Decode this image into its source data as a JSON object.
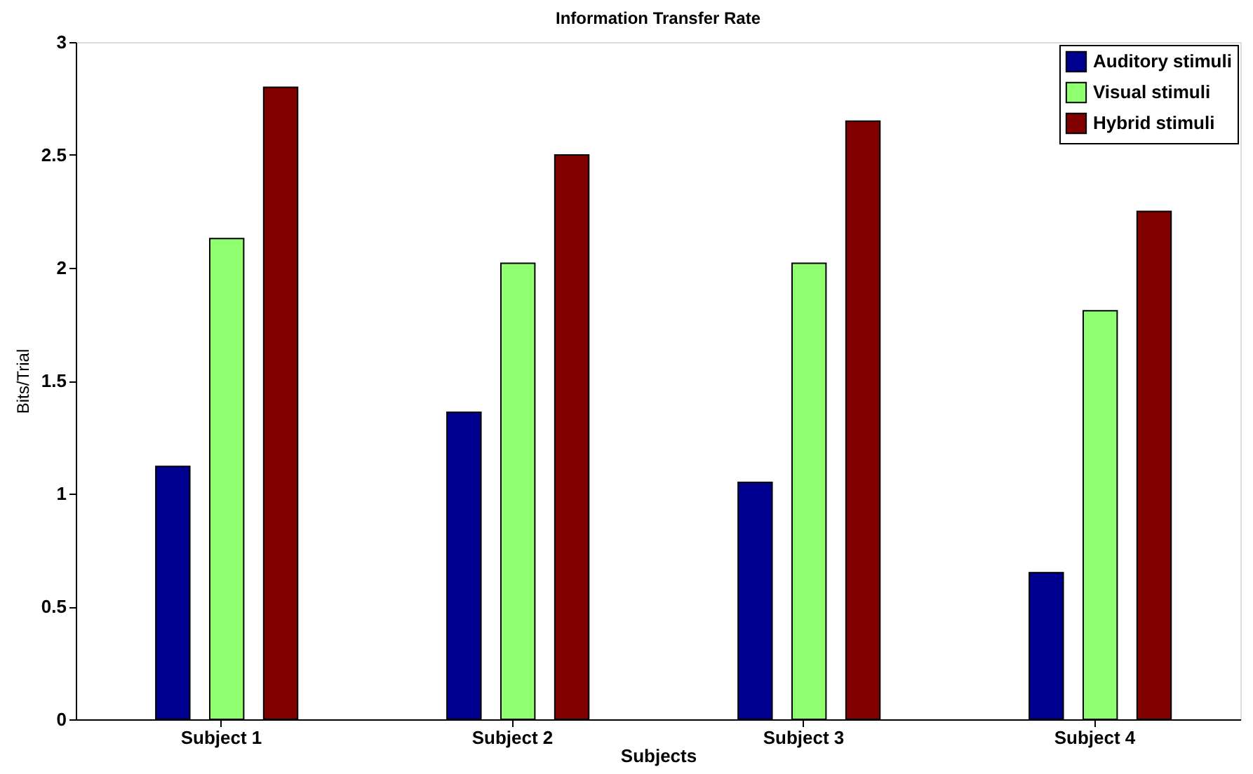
{
  "chart_data": {
    "type": "bar",
    "title": "Information Transfer Rate",
    "xlabel": "Subjects",
    "ylabel": "Bits/Trial",
    "categories": [
      "Subject 1",
      "Subject 2",
      "Subject 3",
      "Subject 4"
    ],
    "series": [
      {
        "name": "Auditory stimuli",
        "color": "#000090",
        "values": [
          1.12,
          1.36,
          1.05,
          0.65
        ]
      },
      {
        "name": "Visual stimuli",
        "color": "#90ff70",
        "values": [
          2.13,
          2.02,
          2.02,
          1.81
        ]
      },
      {
        "name": "Hybrid stimuli",
        "color": "#800000",
        "values": [
          2.8,
          2.5,
          2.65,
          2.25
        ]
      }
    ],
    "ylim": [
      0,
      3
    ],
    "yticks": [
      0,
      0.5,
      1,
      1.5,
      2,
      2.5,
      3
    ],
    "grid": false,
    "legend": "top right"
  }
}
